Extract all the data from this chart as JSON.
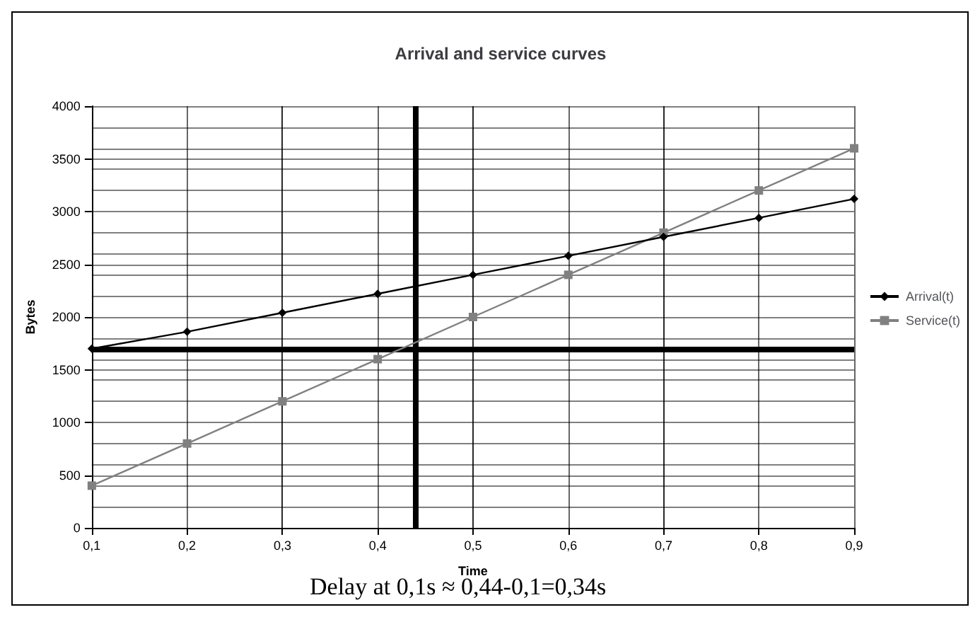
{
  "chart_data": {
    "type": "line",
    "title": "Arrival and service curves",
    "xlabel": "Time",
    "ylabel": "Bytes",
    "x": [
      0.1,
      0.2,
      0.3,
      0.4,
      0.5,
      0.6,
      0.7,
      0.8,
      0.9
    ],
    "series": [
      {
        "name": "Arrival(t)",
        "color": "#000000",
        "marker": "diamond",
        "values": [
          1700,
          1860,
          2040,
          2220,
          2400,
          2580,
          2760,
          2940,
          3120
        ]
      },
      {
        "name": "Service(t)",
        "color": "#808080",
        "marker": "square",
        "values": [
          400,
          800,
          1200,
          1600,
          2000,
          2400,
          2800,
          3200,
          3600
        ]
      }
    ],
    "xlim": [
      0.1,
      0.9
    ],
    "xticks": [
      {
        "value": 0.1,
        "label": "0,1"
      },
      {
        "value": 0.2,
        "label": "0,2"
      },
      {
        "value": 0.3,
        "label": "0,3"
      },
      {
        "value": 0.4,
        "label": "0,4"
      },
      {
        "value": 0.5,
        "label": "0,5"
      },
      {
        "value": 0.6,
        "label": "0,6"
      },
      {
        "value": 0.7,
        "label": "0,7"
      },
      {
        "value": 0.8,
        "label": "0,8"
      },
      {
        "value": 0.9,
        "label": "0,9"
      }
    ],
    "ylim": [
      0,
      4000
    ],
    "yticks": [
      0,
      500,
      1000,
      1500,
      2000,
      2500,
      3000,
      3500,
      4000
    ],
    "grid": true,
    "legend": "right",
    "line_style": "solid",
    "ref_lines": [
      {
        "axis": "y",
        "value": 1700,
        "label": null,
        "color": "#000000"
      },
      {
        "axis": "x",
        "value": 0.44,
        "label": null,
        "color": "#000000"
      }
    ],
    "annotations": [
      "Delay at 0,1s ≈ 0,44-0,1=0,34s"
    ]
  }
}
